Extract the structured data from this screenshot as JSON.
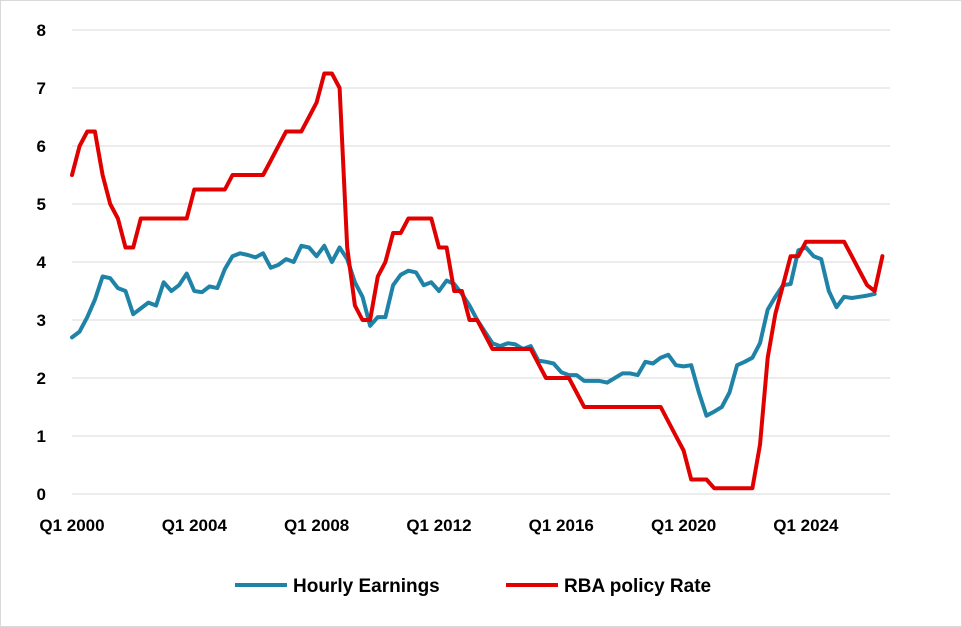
{
  "chart_data": {
    "type": "line",
    "title": "",
    "xlabel": "",
    "ylabel": "",
    "ylim": [
      0,
      8
    ],
    "yticks": [
      "0",
      "1",
      "2",
      "3",
      "4",
      "5",
      "6",
      "7",
      "8"
    ],
    "xlim": [
      2000.0,
      2026.75
    ],
    "xticks": [
      {
        "x": 2000,
        "label": "Q1 2000"
      },
      {
        "x": 2004,
        "label": "Q1 2004"
      },
      {
        "x": 2008,
        "label": "Q1 2008"
      },
      {
        "x": 2012,
        "label": "Q1 2012"
      },
      {
        "x": 2016,
        "label": "Q1 2016"
      },
      {
        "x": 2020,
        "label": "Q1 2020"
      },
      {
        "x": 2024,
        "label": "Q1 2024"
      }
    ],
    "grid": "horizontal",
    "legend_position": "bottom",
    "series": [
      {
        "name": "Hourly Earnings",
        "color": "#1f83a8",
        "points": [
          [
            2000.0,
            2.7
          ],
          [
            2000.25,
            2.8
          ],
          [
            2000.5,
            3.05
          ],
          [
            2000.75,
            3.35
          ],
          [
            2001.0,
            3.75
          ],
          [
            2001.25,
            3.72
          ],
          [
            2001.5,
            3.55
          ],
          [
            2001.75,
            3.5
          ],
          [
            2002.0,
            3.1
          ],
          [
            2002.25,
            3.2
          ],
          [
            2002.5,
            3.3
          ],
          [
            2002.75,
            3.25
          ],
          [
            2003.0,
            3.65
          ],
          [
            2003.25,
            3.5
          ],
          [
            2003.5,
            3.6
          ],
          [
            2003.75,
            3.8
          ],
          [
            2004.0,
            3.5
          ],
          [
            2004.25,
            3.48
          ],
          [
            2004.5,
            3.58
          ],
          [
            2004.75,
            3.55
          ],
          [
            2005.0,
            3.88
          ],
          [
            2005.25,
            4.1
          ],
          [
            2005.5,
            4.15
          ],
          [
            2005.75,
            4.12
          ],
          [
            2006.0,
            4.08
          ],
          [
            2006.25,
            4.15
          ],
          [
            2006.5,
            3.9
          ],
          [
            2006.75,
            3.95
          ],
          [
            2007.0,
            4.05
          ],
          [
            2007.25,
            4.0
          ],
          [
            2007.5,
            4.28
          ],
          [
            2007.75,
            4.25
          ],
          [
            2008.0,
            4.1
          ],
          [
            2008.25,
            4.28
          ],
          [
            2008.5,
            4.0
          ],
          [
            2008.75,
            4.25
          ],
          [
            2009.0,
            4.05
          ],
          [
            2009.25,
            3.65
          ],
          [
            2009.5,
            3.4
          ],
          [
            2009.75,
            2.9
          ],
          [
            2010.0,
            3.05
          ],
          [
            2010.25,
            3.05
          ],
          [
            2010.5,
            3.6
          ],
          [
            2010.75,
            3.78
          ],
          [
            2011.0,
            3.85
          ],
          [
            2011.25,
            3.82
          ],
          [
            2011.5,
            3.6
          ],
          [
            2011.75,
            3.65
          ],
          [
            2012.0,
            3.5
          ],
          [
            2012.25,
            3.68
          ],
          [
            2012.5,
            3.62
          ],
          [
            2012.75,
            3.45
          ],
          [
            2013.0,
            3.25
          ],
          [
            2013.25,
            3.0
          ],
          [
            2013.5,
            2.8
          ],
          [
            2013.75,
            2.6
          ],
          [
            2014.0,
            2.55
          ],
          [
            2014.25,
            2.6
          ],
          [
            2014.5,
            2.58
          ],
          [
            2014.75,
            2.5
          ],
          [
            2015.0,
            2.55
          ],
          [
            2015.25,
            2.3
          ],
          [
            2015.5,
            2.28
          ],
          [
            2015.75,
            2.25
          ],
          [
            2016.0,
            2.1
          ],
          [
            2016.25,
            2.05
          ],
          [
            2016.5,
            2.05
          ],
          [
            2016.75,
            1.95
          ],
          [
            2017.0,
            1.95
          ],
          [
            2017.25,
            1.95
          ],
          [
            2017.5,
            1.92
          ],
          [
            2017.75,
            2.0
          ],
          [
            2018.0,
            2.08
          ],
          [
            2018.25,
            2.08
          ],
          [
            2018.5,
            2.05
          ],
          [
            2018.75,
            2.28
          ],
          [
            2019.0,
            2.25
          ],
          [
            2019.25,
            2.35
          ],
          [
            2019.5,
            2.4
          ],
          [
            2019.75,
            2.22
          ],
          [
            2020.0,
            2.2
          ],
          [
            2020.25,
            2.22
          ],
          [
            2020.5,
            1.75
          ],
          [
            2020.75,
            1.35
          ],
          [
            2021.0,
            1.42
          ],
          [
            2021.25,
            1.5
          ],
          [
            2021.5,
            1.75
          ],
          [
            2021.75,
            2.22
          ],
          [
            2022.0,
            2.28
          ],
          [
            2022.25,
            2.35
          ],
          [
            2022.5,
            2.6
          ],
          [
            2022.75,
            3.18
          ],
          [
            2023.0,
            3.4
          ],
          [
            2023.25,
            3.6
          ],
          [
            2023.5,
            3.62
          ],
          [
            2023.75,
            4.2
          ],
          [
            2024.0,
            4.25
          ],
          [
            2024.25,
            4.1
          ],
          [
            2024.5,
            4.05
          ],
          [
            2024.75,
            3.5
          ],
          [
            2025.0,
            3.22
          ],
          [
            2025.25,
            3.4
          ],
          [
            2025.5,
            3.38
          ],
          [
            2025.75,
            3.4
          ],
          [
            2026.0,
            3.42
          ],
          [
            2026.25,
            3.45
          ]
        ]
      },
      {
        "name": "RBA policy Rate",
        "color": "#e00000",
        "points": [
          [
            2000.0,
            5.5
          ],
          [
            2000.25,
            6.0
          ],
          [
            2000.5,
            6.25
          ],
          [
            2000.75,
            6.25
          ],
          [
            2001.0,
            5.5
          ],
          [
            2001.25,
            5.0
          ],
          [
            2001.5,
            4.75
          ],
          [
            2001.75,
            4.25
          ],
          [
            2002.0,
            4.25
          ],
          [
            2002.25,
            4.75
          ],
          [
            2002.5,
            4.75
          ],
          [
            2002.75,
            4.75
          ],
          [
            2003.0,
            4.75
          ],
          [
            2003.25,
            4.75
          ],
          [
            2003.5,
            4.75
          ],
          [
            2003.75,
            4.75
          ],
          [
            2004.0,
            5.25
          ],
          [
            2004.25,
            5.25
          ],
          [
            2004.5,
            5.25
          ],
          [
            2004.75,
            5.25
          ],
          [
            2005.0,
            5.25
          ],
          [
            2005.25,
            5.5
          ],
          [
            2005.5,
            5.5
          ],
          [
            2005.75,
            5.5
          ],
          [
            2006.0,
            5.5
          ],
          [
            2006.25,
            5.5
          ],
          [
            2006.5,
            5.75
          ],
          [
            2006.75,
            6.0
          ],
          [
            2007.0,
            6.25
          ],
          [
            2007.25,
            6.25
          ],
          [
            2007.5,
            6.25
          ],
          [
            2007.75,
            6.5
          ],
          [
            2008.0,
            6.75
          ],
          [
            2008.25,
            7.25
          ],
          [
            2008.5,
            7.25
          ],
          [
            2008.75,
            7.0
          ],
          [
            2009.0,
            4.25
          ],
          [
            2009.25,
            3.25
          ],
          [
            2009.5,
            3.0
          ],
          [
            2009.75,
            3.0
          ],
          [
            2010.0,
            3.75
          ],
          [
            2010.25,
            4.0
          ],
          [
            2010.5,
            4.5
          ],
          [
            2010.75,
            4.5
          ],
          [
            2011.0,
            4.75
          ],
          [
            2011.25,
            4.75
          ],
          [
            2011.5,
            4.75
          ],
          [
            2011.75,
            4.75
          ],
          [
            2012.0,
            4.25
          ],
          [
            2012.25,
            4.25
          ],
          [
            2012.5,
            3.5
          ],
          [
            2012.75,
            3.5
          ],
          [
            2013.0,
            3.0
          ],
          [
            2013.25,
            3.0
          ],
          [
            2013.5,
            2.75
          ],
          [
            2013.75,
            2.5
          ],
          [
            2014.0,
            2.5
          ],
          [
            2014.25,
            2.5
          ],
          [
            2014.5,
            2.5
          ],
          [
            2014.75,
            2.5
          ],
          [
            2015.0,
            2.5
          ],
          [
            2015.25,
            2.25
          ],
          [
            2015.5,
            2.0
          ],
          [
            2015.75,
            2.0
          ],
          [
            2016.0,
            2.0
          ],
          [
            2016.25,
            2.0
          ],
          [
            2016.5,
            1.75
          ],
          [
            2016.75,
            1.5
          ],
          [
            2017.0,
            1.5
          ],
          [
            2017.25,
            1.5
          ],
          [
            2017.5,
            1.5
          ],
          [
            2017.75,
            1.5
          ],
          [
            2018.0,
            1.5
          ],
          [
            2018.25,
            1.5
          ],
          [
            2018.5,
            1.5
          ],
          [
            2018.75,
            1.5
          ],
          [
            2019.0,
            1.5
          ],
          [
            2019.25,
            1.5
          ],
          [
            2019.5,
            1.25
          ],
          [
            2019.75,
            1.0
          ],
          [
            2020.0,
            0.75
          ],
          [
            2020.25,
            0.25
          ],
          [
            2020.5,
            0.25
          ],
          [
            2020.75,
            0.25
          ],
          [
            2021.0,
            0.1
          ],
          [
            2021.25,
            0.1
          ],
          [
            2021.5,
            0.1
          ],
          [
            2021.75,
            0.1
          ],
          [
            2022.0,
            0.1
          ],
          [
            2022.25,
            0.1
          ],
          [
            2022.5,
            0.85
          ],
          [
            2022.75,
            2.35
          ],
          [
            2023.0,
            3.1
          ],
          [
            2023.25,
            3.6
          ],
          [
            2023.5,
            4.1
          ],
          [
            2023.75,
            4.1
          ],
          [
            2024.0,
            4.35
          ],
          [
            2024.25,
            4.35
          ],
          [
            2024.5,
            4.35
          ],
          [
            2024.75,
            4.35
          ],
          [
            2025.0,
            4.35
          ],
          [
            2025.25,
            4.35
          ],
          [
            2025.5,
            4.1
          ],
          [
            2025.75,
            3.85
          ],
          [
            2026.0,
            3.6
          ],
          [
            2026.25,
            3.5
          ],
          [
            2026.5,
            4.1
          ]
        ]
      }
    ]
  }
}
